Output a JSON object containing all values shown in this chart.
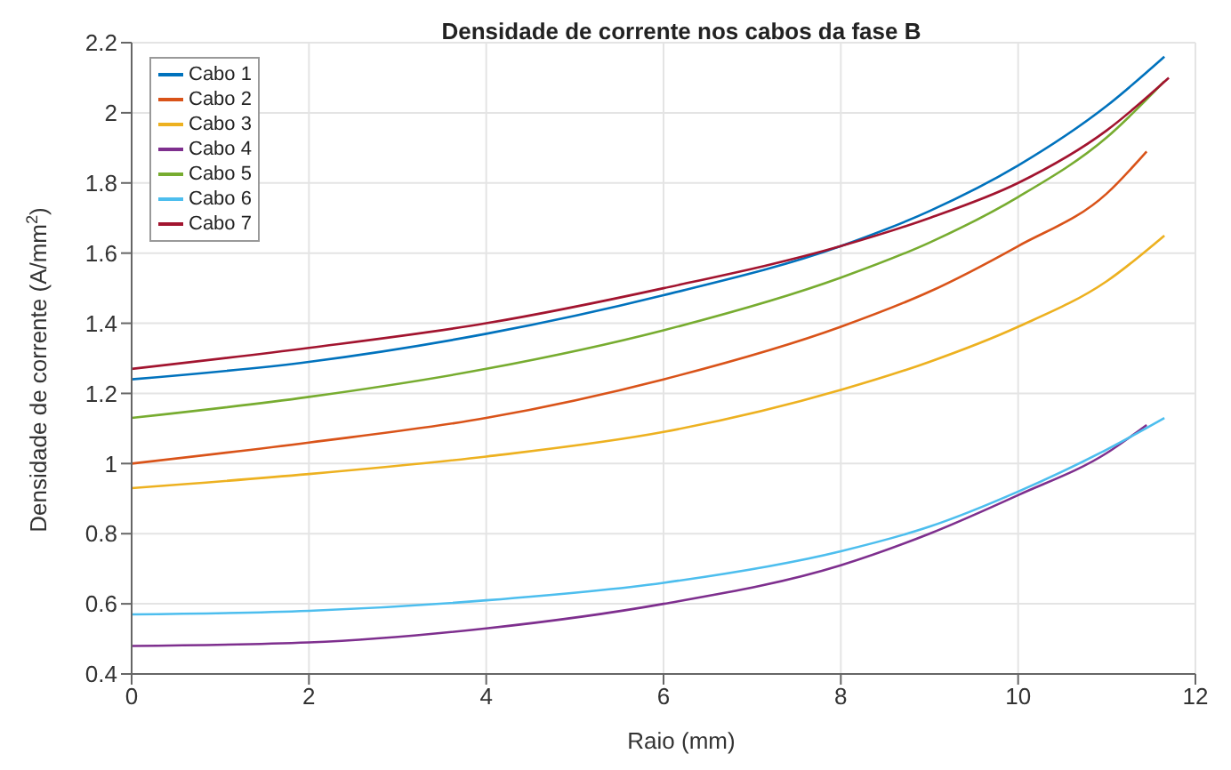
{
  "chart_data": {
    "type": "line",
    "title": "Densidade de corrente nos cabos da fase  B",
    "xlabel": "Raio (mm)",
    "ylabel": "Densidade de corrente (A/mm$^{2}$)",
    "xlim": [
      0,
      12
    ],
    "xticks": [
      0,
      2,
      4,
      6,
      8,
      10,
      12
    ],
    "ylim": [
      0.4,
      2.2
    ],
    "yticks": [
      0.4,
      0.6,
      0.8,
      1,
      1.2,
      1.4,
      1.6,
      1.8,
      2,
      2.2
    ],
    "grid": true,
    "legend": "top left",
    "marker": "none",
    "line_style": "solid",
    "series": [
      {
        "name": "Cabo 1",
        "color": "#0072bd",
        "x": [
          0,
          2,
          4,
          6,
          8,
          9,
          10,
          11,
          11.65
        ],
        "values": [
          1.24,
          1.29,
          1.37,
          1.48,
          1.62,
          1.72,
          1.85,
          2.02,
          2.16
        ]
      },
      {
        "name": "Cabo 2",
        "color": "#d95319",
        "x": [
          0,
          2,
          4,
          6,
          8,
          9,
          10,
          11,
          11.45
        ],
        "values": [
          1.0,
          1.06,
          1.13,
          1.24,
          1.39,
          1.49,
          1.62,
          1.77,
          1.89
        ]
      },
      {
        "name": "Cabo 3",
        "color": "#edb120",
        "x": [
          0,
          2,
          4,
          6,
          8,
          9,
          10,
          11,
          11.65
        ],
        "values": [
          0.93,
          0.97,
          1.02,
          1.09,
          1.21,
          1.29,
          1.39,
          1.52,
          1.65
        ]
      },
      {
        "name": "Cabo 4",
        "color": "#7e2f8e",
        "x": [
          0,
          2,
          4,
          6,
          8,
          9,
          10,
          11,
          11.45
        ],
        "values": [
          0.48,
          0.49,
          0.53,
          0.6,
          0.71,
          0.8,
          0.91,
          1.03,
          1.11
        ]
      },
      {
        "name": "Cabo 5",
        "color": "#77ac30",
        "x": [
          0,
          2,
          4,
          6,
          8,
          9,
          10,
          11,
          11.65
        ],
        "values": [
          1.13,
          1.19,
          1.27,
          1.38,
          1.53,
          1.63,
          1.76,
          1.93,
          2.09
        ]
      },
      {
        "name": "Cabo 6",
        "color": "#4dbeee",
        "x": [
          0,
          2,
          4,
          6,
          8,
          9,
          10,
          11,
          11.65
        ],
        "values": [
          0.57,
          0.58,
          0.61,
          0.66,
          0.75,
          0.82,
          0.92,
          1.04,
          1.13
        ]
      },
      {
        "name": "Cabo 7",
        "color": "#a2142f",
        "x": [
          0,
          2,
          4,
          6,
          8,
          9,
          10,
          11,
          11.7
        ],
        "values": [
          1.27,
          1.33,
          1.4,
          1.5,
          1.62,
          1.7,
          1.8,
          1.95,
          2.1
        ]
      }
    ]
  }
}
